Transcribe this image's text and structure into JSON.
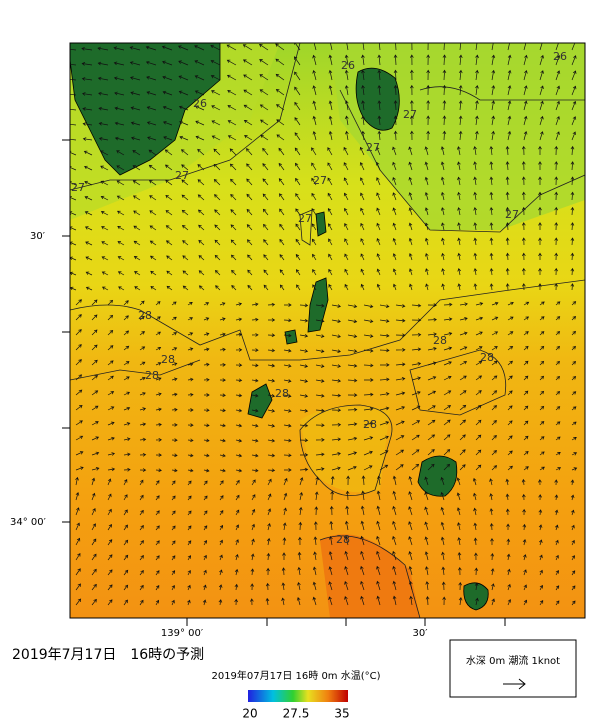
{
  "title": "2019年7月17日　16時の予測",
  "subtitle": "2019年07月17日 16時 0m 水温(°C)",
  "map": {
    "lat_labels": [
      "30′",
      "34° 00′"
    ],
    "lon_labels": [
      "139° 00′",
      "30′"
    ],
    "contour_labels": [
      26,
      26,
      26,
      27,
      27,
      27,
      27,
      27,
      27,
      27,
      28,
      28,
      28,
      28,
      28,
      28,
      28,
      28
    ]
  },
  "colorbar": {
    "labels": [
      "20",
      "27.5",
      "35"
    ]
  },
  "legend": {
    "text": "水深 0m 潮流 1knot"
  }
}
